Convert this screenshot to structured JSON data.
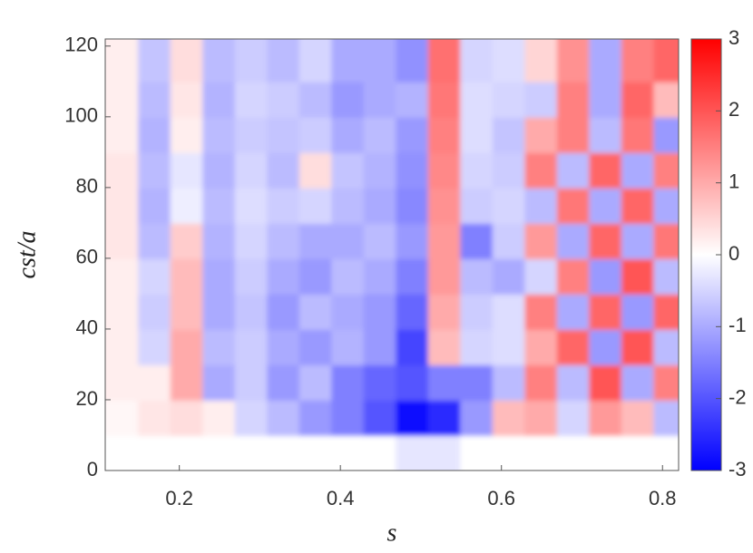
{
  "chart_data": {
    "type": "heatmap",
    "xlabel": "s",
    "ylabel": "cst/a",
    "xlim": [
      0.108,
      0.82
    ],
    "xticks": [
      0.2,
      0.4,
      0.6,
      0.8
    ],
    "ylim": [
      0,
      122
    ],
    "yticks": [
      0,
      20,
      40,
      60,
      80,
      100,
      120
    ],
    "clim": [
      -3,
      3
    ],
    "cticks": [
      3,
      2,
      1,
      0,
      -1,
      -2,
      -3
    ],
    "x": [
      0.13,
      0.17,
      0.21,
      0.25,
      0.29,
      0.33,
      0.37,
      0.41,
      0.45,
      0.49,
      0.53,
      0.57,
      0.61,
      0.65,
      0.69,
      0.73,
      0.77,
      0.81
    ],
    "y": [
      5,
      15,
      25,
      35,
      45,
      55,
      65,
      75,
      85,
      95,
      105,
      115
    ],
    "z": [
      [
        0,
        0,
        0,
        0,
        0,
        0,
        0,
        0,
        0,
        -0.3,
        -0.3,
        0,
        0,
        0,
        0,
        0,
        0,
        0
      ],
      [
        0.1,
        0.3,
        0.4,
        0.2,
        -0.5,
        -0.8,
        -1.2,
        -1.5,
        -2,
        -2.8,
        -2.5,
        -1.2,
        0.8,
        1,
        -0.5,
        1.2,
        0.8,
        -0.8
      ],
      [
        0.2,
        0.2,
        1,
        -1,
        -0.6,
        -1.2,
        -0.8,
        -1.5,
        -1.8,
        -2,
        -1.5,
        -1.5,
        -0.8,
        1.5,
        -0.8,
        2,
        -1,
        1.5
      ],
      [
        0.2,
        -0.5,
        1,
        -0.8,
        -0.6,
        -1,
        -1.2,
        -0.9,
        -1.2,
        -2.2,
        0.8,
        -0.5,
        -0.4,
        1,
        1.8,
        -1.2,
        2,
        -0.8
      ],
      [
        0.2,
        -0.6,
        0.8,
        -1,
        -0.7,
        -1.2,
        -0.8,
        -1,
        -1.2,
        -1.8,
        1,
        -0.6,
        -0.4,
        1.5,
        -1,
        1.8,
        -1.2,
        1.8
      ],
      [
        0.2,
        -0.5,
        0.8,
        -1,
        -0.6,
        -1,
        -1.2,
        -0.8,
        -1,
        -1.5,
        1.2,
        -0.8,
        -1,
        -0.5,
        1.5,
        -1.2,
        2,
        -0.8
      ],
      [
        0.3,
        -0.8,
        0.6,
        -0.9,
        -0.5,
        -0.8,
        -1,
        -1,
        -0.8,
        -1.2,
        1.2,
        -1.5,
        -0.6,
        1.2,
        -1,
        1.8,
        -1,
        1.6
      ],
      [
        0.3,
        -0.9,
        -0.2,
        -0.8,
        -0.4,
        -0.6,
        -0.5,
        -0.8,
        -1,
        -1.4,
        1.3,
        -0.6,
        -0.5,
        -0.8,
        1.6,
        -1,
        1.8,
        -1
      ],
      [
        0.3,
        -0.8,
        -0.3,
        -0.9,
        -0.5,
        -0.8,
        0.4,
        -0.7,
        -0.9,
        -1.3,
        1.4,
        -0.5,
        -0.6,
        1.5,
        -0.8,
        1.8,
        -1,
        1.5
      ],
      [
        0.2,
        -0.9,
        0.2,
        -0.8,
        -0.6,
        -0.7,
        -0.6,
        -1,
        -0.8,
        -1.2,
        1.5,
        -0.4,
        -0.7,
        1,
        1.5,
        -0.8,
        1.6,
        -1.2
      ],
      [
        0.2,
        -0.8,
        0.3,
        -0.9,
        -0.5,
        -0.6,
        -0.8,
        -1.2,
        -1,
        -0.9,
        1.6,
        -0.4,
        -0.5,
        -0.6,
        1.5,
        -1,
        1.8,
        0.8
      ],
      [
        0.2,
        -0.7,
        0.4,
        -0.8,
        -0.6,
        -0.8,
        -0.5,
        -1,
        -1,
        -1.3,
        1.7,
        -0.5,
        -0.4,
        0.5,
        1.3,
        -1,
        1.5,
        1.8
      ]
    ]
  }
}
